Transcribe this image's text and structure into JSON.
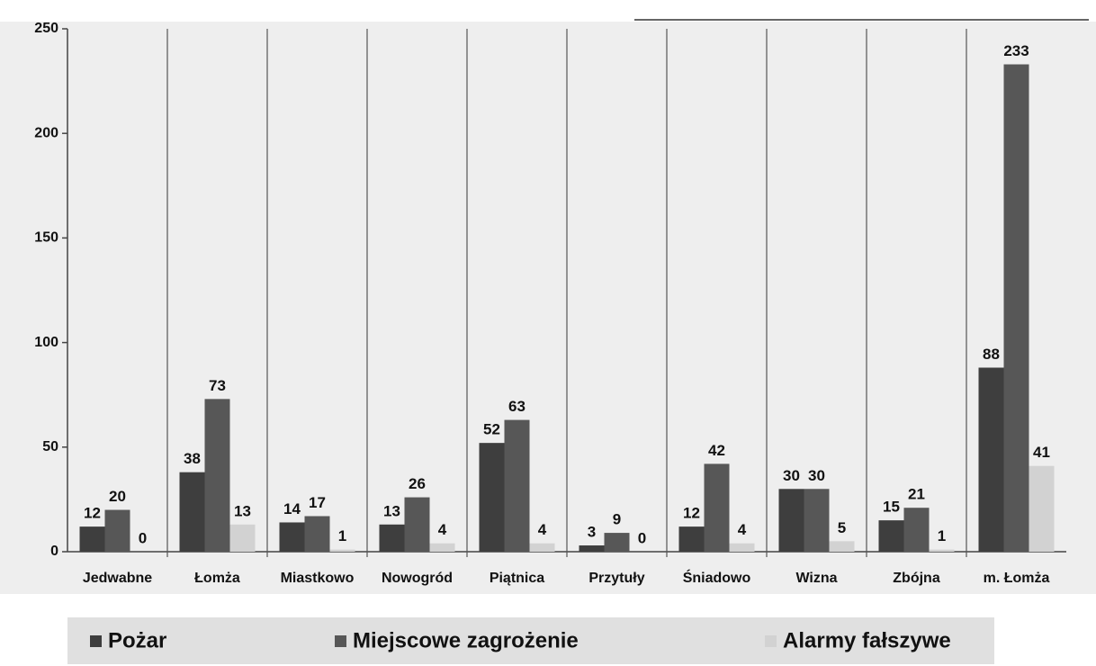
{
  "chart_data": {
    "type": "bar",
    "categories": [
      "Jedwabne",
      "Łomża",
      "Miastkowo",
      "Nowogród",
      "Piątnica",
      "Przytuły",
      "Śniadowo",
      "Wizna",
      "Zbójna",
      "m. Łomża"
    ],
    "series": [
      {
        "name": "Pożar",
        "color": "#3e3e3e",
        "values": [
          12,
          38,
          14,
          13,
          52,
          3,
          12,
          30,
          15,
          88
        ]
      },
      {
        "name": "Miejscowe zagrożenie",
        "color": "#575757",
        "values": [
          20,
          73,
          17,
          26,
          63,
          9,
          42,
          30,
          21,
          233
        ]
      },
      {
        "name": "Alarmy fałszywe",
        "color": "#d2d2d2",
        "values": [
          0,
          13,
          1,
          4,
          4,
          0,
          4,
          5,
          1,
          41
        ]
      }
    ],
    "ylim": [
      0,
      250
    ],
    "yticks": [
      0,
      50,
      100,
      150,
      200,
      250
    ],
    "legend": "bottom"
  }
}
